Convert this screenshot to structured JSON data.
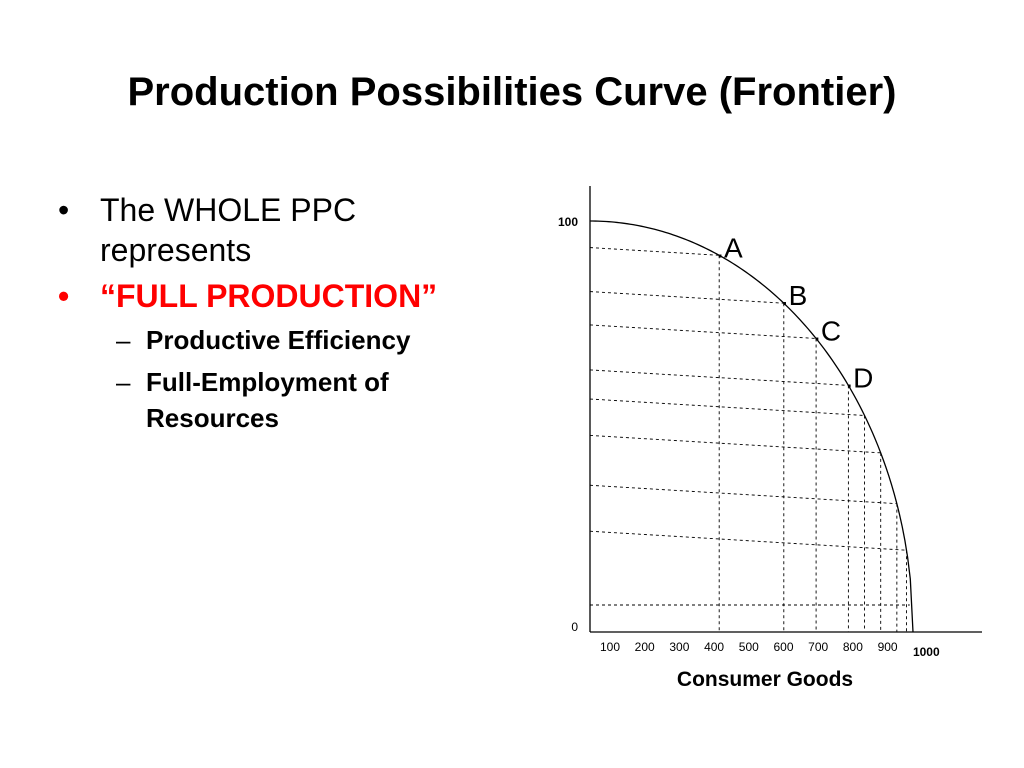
{
  "slide": {
    "title": "Production Possibilities Curve (Frontier)"
  },
  "bullets": {
    "marker": "•",
    "sub_marker": "–",
    "line1": "The WHOLE PPC represents",
    "line2": "“FULL PRODUCTION”",
    "sub1": "Productive Efficiency",
    "sub2": "Full-Employment of Resources"
  },
  "colors": {
    "emphasis": "#ff0000",
    "text": "#000000"
  },
  "chart_data": {
    "type": "line",
    "title": "",
    "xlabel": "Consumer Goods",
    "ylabel": "",
    "xlim": [
      0,
      1000
    ],
    "ylim": [
      0,
      100
    ],
    "x_tick_labels": [
      "100",
      "200",
      "300",
      "400",
      "500",
      "600",
      "700",
      "800",
      "900",
      "1000"
    ],
    "y_tick_labels": [
      "100",
      "0"
    ],
    "curve_x": [
      0,
      400,
      600,
      700,
      800,
      850,
      900,
      950,
      980,
      1000
    ],
    "points": [
      {
        "label": ".A",
        "x": 400
      },
      {
        "label": ".B",
        "x": 600
      },
      {
        "label": ".C",
        "x": 700
      },
      {
        "label": ".D",
        "x": 800
      }
    ],
    "grid": "dashed"
  }
}
